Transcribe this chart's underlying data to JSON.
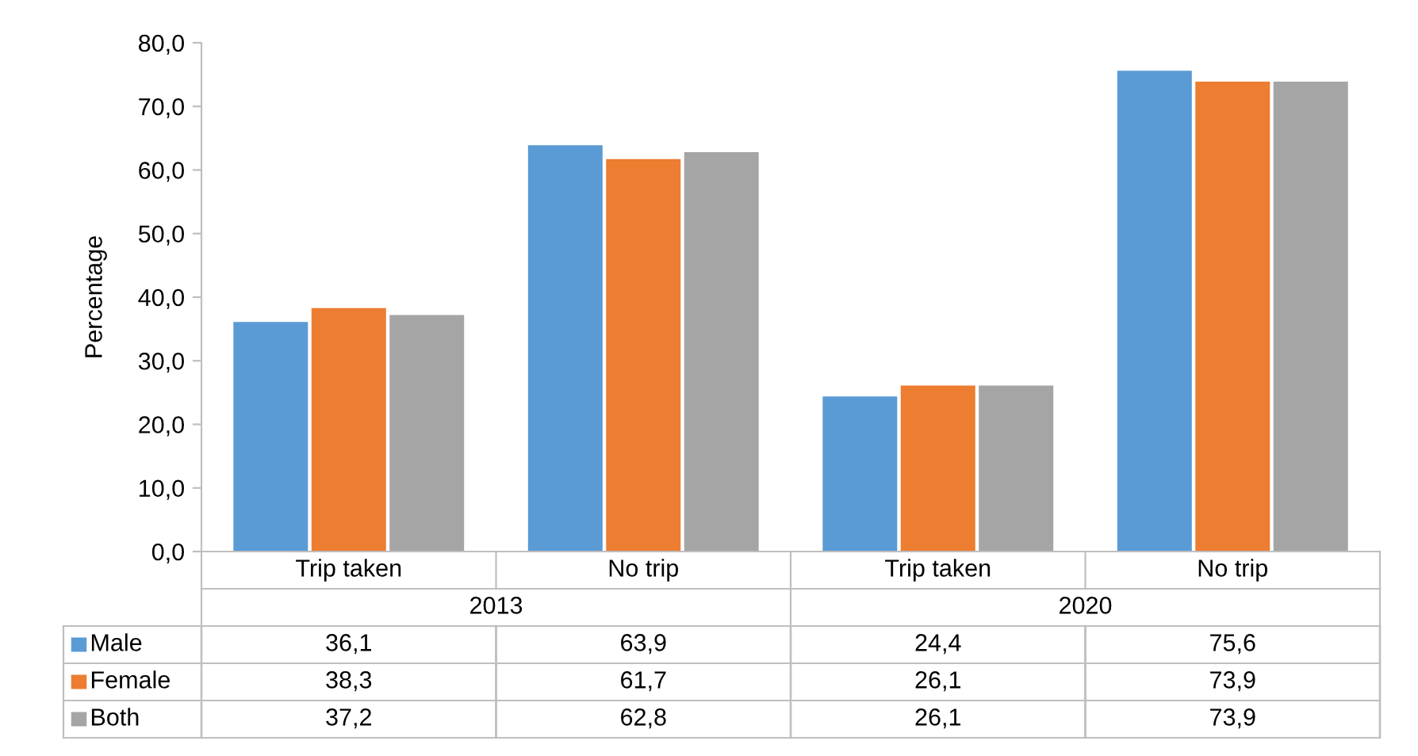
{
  "chart_data": {
    "type": "bar",
    "ylabel": "Percentage",
    "categories": [
      "Trip taken",
      "No trip",
      "Trip taken",
      "No trip"
    ],
    "annotations": [
      "2013",
      "2020"
    ],
    "series": [
      {
        "name": "Male",
        "color": "#5b9bd5",
        "values": [
          36.1,
          63.9,
          24.4,
          75.6
        ],
        "value_labels": [
          "36,1",
          "63,9",
          "24,4",
          "75,6"
        ]
      },
      {
        "name": "Female",
        "color": "#ed7d31",
        "values": [
          38.3,
          61.7,
          26.1,
          73.9
        ],
        "value_labels": [
          "38,3",
          "61,7",
          "26,1",
          "73,9"
        ]
      },
      {
        "name": "Both",
        "color": "#a5a5a5",
        "values": [
          37.2,
          62.8,
          26.1,
          73.9
        ],
        "value_labels": [
          "37,2",
          "62,8",
          "26,1",
          "73,9"
        ]
      }
    ],
    "ylim": [
      0,
      80
    ],
    "yticks": [
      {
        "value": 0,
        "label": "0,0"
      },
      {
        "value": 10,
        "label": "10,0"
      },
      {
        "value": 20,
        "label": "20,0"
      },
      {
        "value": 30,
        "label": "30,0"
      },
      {
        "value": 40,
        "label": "40,0"
      },
      {
        "value": 50,
        "label": "50,0"
      },
      {
        "value": 60,
        "label": "60,0"
      },
      {
        "value": 70,
        "label": "70,0"
      },
      {
        "value": 80,
        "label": "80,0"
      }
    ],
    "grid": false,
    "legend": "bottom left"
  }
}
